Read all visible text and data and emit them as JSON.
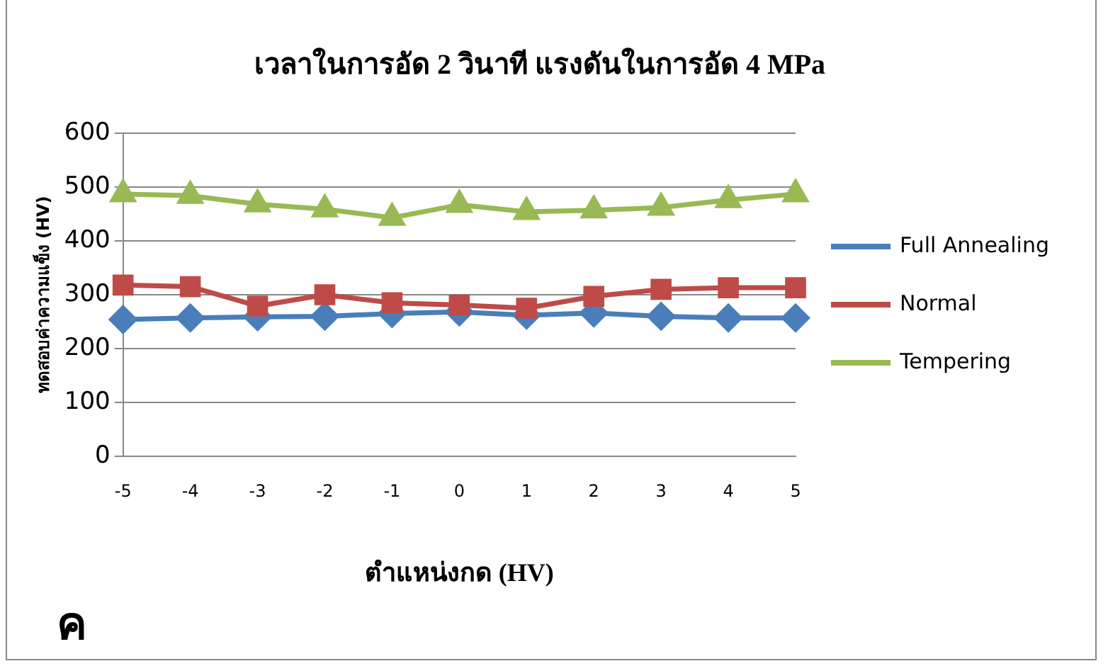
{
  "chart_data": {
    "type": "line",
    "title": "เวลาในการอัด 2 วินาที แรงดันในการอัด 4 MPa",
    "xlabel": "ตำแหน่งกด (HV)",
    "ylabel": "ทดสอบค่าความแข็ง (HV)",
    "annotations": [
      "ค"
    ],
    "categories": [
      "-5",
      "-4",
      "-3",
      "-2",
      "-1",
      "0",
      "1",
      "2",
      "3",
      "4",
      "5"
    ],
    "series": [
      {
        "name": "Full Annealing",
        "color": "#4a7ebb",
        "marker": "diamond",
        "values": [
          254,
          257,
          259,
          260,
          265,
          268,
          262,
          266,
          260,
          257,
          257
        ]
      },
      {
        "name": "Normal",
        "color": "#be4b48",
        "marker": "square",
        "values": [
          318,
          315,
          279,
          300,
          285,
          281,
          275,
          297,
          310,
          313,
          313
        ]
      },
      {
        "name": "Tempering",
        "color": "#98b954",
        "marker": "triangle",
        "values": [
          487,
          484,
          468,
          459,
          443,
          467,
          454,
          457,
          462,
          476,
          487
        ]
      }
    ],
    "ylim": [
      0,
      600
    ],
    "yticks": [
      0,
      100,
      200,
      300,
      400,
      500,
      600
    ],
    "grid": "y",
    "legend": "right",
    "line_style": "solid"
  }
}
